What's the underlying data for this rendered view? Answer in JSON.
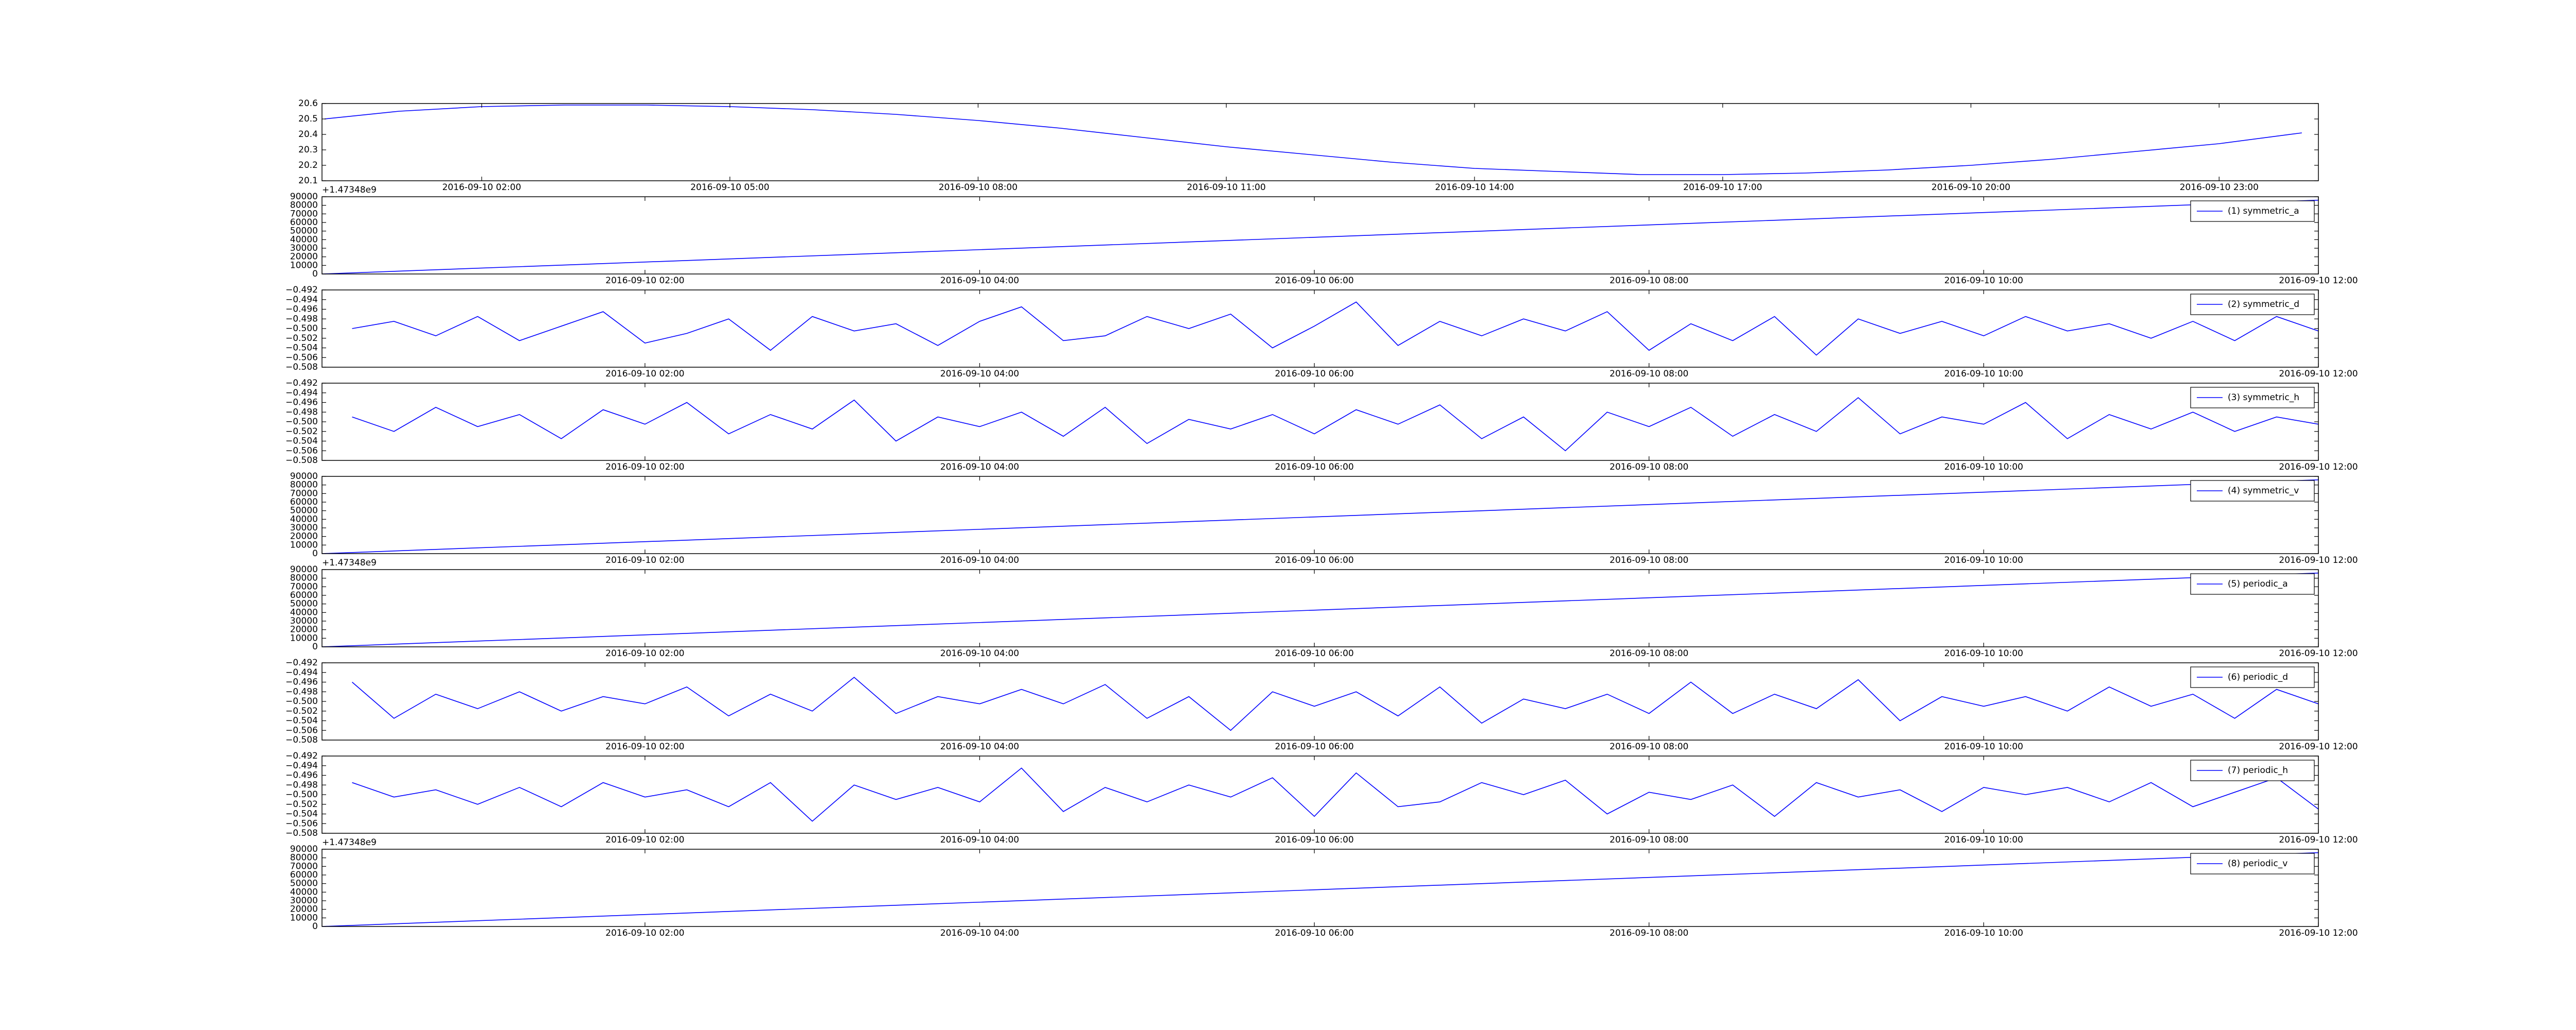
{
  "chart_data": [
    {
      "type": "line",
      "color": "#0000ff",
      "legend": "upper right",
      "x": [
        0.1,
        1,
        2,
        3,
        4,
        5,
        6,
        7,
        8,
        9,
        10,
        11,
        12,
        13,
        14,
        15,
        16,
        17,
        18,
        19,
        20,
        21,
        22,
        23,
        24
      ],
      "values": [
        20.5,
        20.55,
        20.58,
        20.59,
        20.59,
        20.58,
        20.56,
        20.53,
        20.49,
        20.44,
        20.38,
        20.32,
        20.27,
        20.22,
        20.18,
        20.16,
        20.14,
        20.14,
        20.15,
        20.17,
        20.2,
        20.24,
        20.29,
        20.34,
        20.41
      ],
      "xlim": [
        0.07,
        24.2
      ],
      "ylim": [
        20.1,
        20.6
      ],
      "xticks": [
        {
          "value": 2,
          "label": "2016-09-10 02:00"
        },
        {
          "value": 5,
          "label": "2016-09-10 05:00"
        },
        {
          "value": 8,
          "label": "2016-09-10 08:00"
        },
        {
          "value": 11,
          "label": "2016-09-10 11:00"
        },
        {
          "value": 14,
          "label": "2016-09-10 14:00"
        },
        {
          "value": 17,
          "label": "2016-09-10 17:00"
        },
        {
          "value": 20,
          "label": "2016-09-10 20:00"
        },
        {
          "value": 23,
          "label": "2016-09-10 23:00"
        }
      ],
      "yticks": [
        20.1,
        20.2,
        20.3,
        20.4,
        20.5,
        20.6
      ]
    },
    {
      "type": "line",
      "offset_text": "+1.47348e9",
      "legend": "upper right",
      "x": [
        0.07,
        12
      ],
      "series": [
        {
          "name": "(1) symmetric_a",
          "color": "#0000ff",
          "values": [
            0,
            86000
          ]
        }
      ],
      "xlim": [
        0.07,
        12
      ],
      "ylim": [
        0,
        90000
      ],
      "xticks": [
        {
          "value": 2,
          "label": "2016-09-10 02:00"
        },
        {
          "value": 4,
          "label": "2016-09-10 04:00"
        },
        {
          "value": 6,
          "label": "2016-09-10 06:00"
        },
        {
          "value": 8,
          "label": "2016-09-10 08:00"
        },
        {
          "value": 10,
          "label": "2016-09-10 10:00"
        },
        {
          "value": 12,
          "label": "2016-09-10 12:00"
        }
      ],
      "yticks": [
        0,
        10000,
        20000,
        30000,
        40000,
        50000,
        60000,
        70000,
        80000,
        90000
      ]
    },
    {
      "type": "line",
      "legend": "upper right",
      "x": [
        0.25,
        0.5,
        0.75,
        1,
        1.25,
        1.5,
        1.75,
        2,
        2.25,
        2.5,
        2.75,
        3,
        3.25,
        3.5,
        3.75,
        4,
        4.25,
        4.5,
        4.75,
        5,
        5.25,
        5.5,
        5.75,
        6,
        6.25,
        6.5,
        6.75,
        7,
        7.25,
        7.5,
        7.75,
        8,
        8.25,
        8.5,
        8.75,
        9,
        9.25,
        9.5,
        9.75,
        10,
        10.25,
        10.5,
        10.75,
        11,
        11.25,
        11.5,
        11.75,
        12
      ],
      "series": [
        {
          "name": "(2) symmetric_d",
          "color": "#0000ff",
          "values": [
            -0.5,
            -0.4985,
            -0.5015,
            -0.4975,
            -0.5025,
            -0.4995,
            -0.4965,
            -0.503,
            -0.501,
            -0.498,
            -0.5045,
            -0.4975,
            -0.5005,
            -0.499,
            -0.5035,
            -0.4985,
            -0.4955,
            -0.5025,
            -0.5015,
            -0.4975,
            -0.5,
            -0.497,
            -0.504,
            -0.4995,
            -0.4945,
            -0.5035,
            -0.4985,
            -0.5015,
            -0.498,
            -0.5005,
            -0.4965,
            -0.5045,
            -0.499,
            -0.5025,
            -0.4975,
            -0.5055,
            -0.498,
            -0.501,
            -0.4985,
            -0.5015,
            -0.4975,
            -0.5005,
            -0.499,
            -0.502,
            -0.4985,
            -0.5025,
            -0.4975,
            -0.5005
          ]
        }
      ],
      "xlim": [
        0.07,
        12
      ],
      "ylim": [
        -0.508,
        -0.492
      ],
      "xticks": [
        {
          "value": 2,
          "label": "2016-09-10 02:00"
        },
        {
          "value": 4,
          "label": "2016-09-10 04:00"
        },
        {
          "value": 6,
          "label": "2016-09-10 06:00"
        },
        {
          "value": 8,
          "label": "2016-09-10 08:00"
        },
        {
          "value": 10,
          "label": "2016-09-10 10:00"
        },
        {
          "value": 12,
          "label": "2016-09-10 12:00"
        }
      ],
      "yticks": [
        {
          "value": -0.508,
          "label": "−0.508"
        },
        {
          "value": -0.506,
          "label": "−0.506"
        },
        {
          "value": -0.504,
          "label": "−0.504"
        },
        {
          "value": -0.502,
          "label": "−0.502"
        },
        {
          "value": -0.5,
          "label": "−0.500"
        },
        {
          "value": -0.498,
          "label": "−0.498"
        },
        {
          "value": -0.496,
          "label": "−0.496"
        },
        {
          "value": -0.494,
          "label": "−0.494"
        },
        {
          "value": -0.492,
          "label": "−0.492"
        }
      ]
    },
    {
      "type": "line",
      "legend": "upper right",
      "x": [
        0.25,
        0.5,
        0.75,
        1,
        1.25,
        1.5,
        1.75,
        2,
        2.25,
        2.5,
        2.75,
        3,
        3.25,
        3.5,
        3.75,
        4,
        4.25,
        4.5,
        4.75,
        5,
        5.25,
        5.5,
        5.75,
        6,
        6.25,
        6.5,
        6.75,
        7,
        7.25,
        7.5,
        7.75,
        8,
        8.25,
        8.5,
        8.75,
        9,
        9.25,
        9.5,
        9.75,
        10,
        10.25,
        10.5,
        10.75,
        11,
        11.25,
        11.5,
        11.75,
        12
      ],
      "series": [
        {
          "name": "(3) symmetric_h",
          "color": "#0000ff",
          "values": [
            -0.499,
            -0.502,
            -0.497,
            -0.501,
            -0.4985,
            -0.5035,
            -0.4975,
            -0.5005,
            -0.496,
            -0.5025,
            -0.4985,
            -0.5015,
            -0.4955,
            -0.504,
            -0.499,
            -0.501,
            -0.498,
            -0.503,
            -0.497,
            -0.5045,
            -0.4995,
            -0.5015,
            -0.4985,
            -0.5025,
            -0.4975,
            -0.5005,
            -0.4965,
            -0.5035,
            -0.499,
            -0.506,
            -0.498,
            -0.501,
            -0.497,
            -0.503,
            -0.4985,
            -0.502,
            -0.495,
            -0.5025,
            -0.499,
            -0.5005,
            -0.496,
            -0.5035,
            -0.4985,
            -0.5015,
            -0.498,
            -0.502,
            -0.499,
            -0.5005
          ]
        }
      ],
      "xlim": [
        0.07,
        12
      ],
      "ylim": [
        -0.508,
        -0.492
      ],
      "xticks": [
        {
          "value": 2,
          "label": "2016-09-10 02:00"
        },
        {
          "value": 4,
          "label": "2016-09-10 04:00"
        },
        {
          "value": 6,
          "label": "2016-09-10 06:00"
        },
        {
          "value": 8,
          "label": "2016-09-10 08:00"
        },
        {
          "value": 10,
          "label": "2016-09-10 10:00"
        },
        {
          "value": 12,
          "label": "2016-09-10 12:00"
        }
      ],
      "yticks": [
        {
          "value": -0.508,
          "label": "−0.508"
        },
        {
          "value": -0.506,
          "label": "−0.506"
        },
        {
          "value": -0.504,
          "label": "−0.504"
        },
        {
          "value": -0.502,
          "label": "−0.502"
        },
        {
          "value": -0.5,
          "label": "−0.500"
        },
        {
          "value": -0.498,
          "label": "−0.498"
        },
        {
          "value": -0.496,
          "label": "−0.496"
        },
        {
          "value": -0.494,
          "label": "−0.494"
        },
        {
          "value": -0.492,
          "label": "−0.492"
        }
      ]
    },
    {
      "type": "line",
      "legend": "upper right",
      "x": [
        0.07,
        12
      ],
      "series": [
        {
          "name": "(4) symmetric_v",
          "color": "#0000ff",
          "values": [
            0,
            86000
          ]
        }
      ],
      "xlim": [
        0.07,
        12
      ],
      "ylim": [
        0,
        90000
      ],
      "xticks": [
        {
          "value": 2,
          "label": "2016-09-10 02:00"
        },
        {
          "value": 4,
          "label": "2016-09-10 04:00"
        },
        {
          "value": 6,
          "label": "2016-09-10 06:00"
        },
        {
          "value": 8,
          "label": "2016-09-10 08:00"
        },
        {
          "value": 10,
          "label": "2016-09-10 10:00"
        },
        {
          "value": 12,
          "label": "2016-09-10 12:00"
        }
      ],
      "yticks": [
        0,
        10000,
        20000,
        30000,
        40000,
        50000,
        60000,
        70000,
        80000,
        90000
      ]
    },
    {
      "type": "line",
      "offset_text": "+1.47348e9",
      "legend": "upper right",
      "x": [
        0.07,
        12
      ],
      "series": [
        {
          "name": "(5) periodic_a",
          "color": "#0000ff",
          "values": [
            0,
            86000
          ]
        }
      ],
      "xlim": [
        0.07,
        12
      ],
      "ylim": [
        0,
        90000
      ],
      "xticks": [
        {
          "value": 2,
          "label": "2016-09-10 02:00"
        },
        {
          "value": 4,
          "label": "2016-09-10 04:00"
        },
        {
          "value": 6,
          "label": "2016-09-10 06:00"
        },
        {
          "value": 8,
          "label": "2016-09-10 08:00"
        },
        {
          "value": 10,
          "label": "2016-09-10 10:00"
        },
        {
          "value": 12,
          "label": "2016-09-10 12:00"
        }
      ],
      "yticks": [
        0,
        10000,
        20000,
        30000,
        40000,
        50000,
        60000,
        70000,
        80000,
        90000
      ]
    },
    {
      "type": "line",
      "legend": "upper right",
      "x": [
        0.25,
        0.5,
        0.75,
        1,
        1.25,
        1.5,
        1.75,
        2,
        2.25,
        2.5,
        2.75,
        3,
        3.25,
        3.5,
        3.75,
        4,
        4.25,
        4.5,
        4.75,
        5,
        5.25,
        5.5,
        5.75,
        6,
        6.25,
        6.5,
        6.75,
        7,
        7.25,
        7.5,
        7.75,
        8,
        8.25,
        8.5,
        8.75,
        9,
        9.25,
        9.5,
        9.75,
        10,
        10.25,
        10.5,
        10.75,
        11,
        11.25,
        11.5,
        11.75,
        12
      ],
      "series": [
        {
          "name": "(6) periodic_d",
          "color": "#0000ff",
          "values": [
            -0.496,
            -0.5035,
            -0.4985,
            -0.5015,
            -0.498,
            -0.502,
            -0.499,
            -0.5005,
            -0.497,
            -0.503,
            -0.4985,
            -0.502,
            -0.495,
            -0.5025,
            -0.499,
            -0.5005,
            -0.4975,
            -0.5005,
            -0.4965,
            -0.5035,
            -0.499,
            -0.506,
            -0.498,
            -0.501,
            -0.498,
            -0.503,
            -0.497,
            -0.5045,
            -0.4995,
            -0.5015,
            -0.4985,
            -0.5025,
            -0.496,
            -0.5025,
            -0.4985,
            -0.5015,
            -0.4955,
            -0.504,
            -0.499,
            -0.501,
            -0.499,
            -0.502,
            -0.497,
            -0.501,
            -0.4985,
            -0.5035,
            -0.4975,
            -0.5005
          ]
        }
      ],
      "xlim": [
        0.07,
        12
      ],
      "ylim": [
        -0.508,
        -0.492
      ],
      "xticks": [
        {
          "value": 2,
          "label": "2016-09-10 02:00"
        },
        {
          "value": 4,
          "label": "2016-09-10 04:00"
        },
        {
          "value": 6,
          "label": "2016-09-10 06:00"
        },
        {
          "value": 8,
          "label": "2016-09-10 08:00"
        },
        {
          "value": 10,
          "label": "2016-09-10 10:00"
        },
        {
          "value": 12,
          "label": "2016-09-10 12:00"
        }
      ],
      "yticks": [
        {
          "value": -0.508,
          "label": "−0.508"
        },
        {
          "value": -0.506,
          "label": "−0.506"
        },
        {
          "value": -0.504,
          "label": "−0.504"
        },
        {
          "value": -0.502,
          "label": "−0.502"
        },
        {
          "value": -0.5,
          "label": "−0.500"
        },
        {
          "value": -0.498,
          "label": "−0.498"
        },
        {
          "value": -0.496,
          "label": "−0.496"
        },
        {
          "value": -0.494,
          "label": "−0.494"
        },
        {
          "value": -0.492,
          "label": "−0.492"
        }
      ]
    },
    {
      "type": "line",
      "legend": "upper right",
      "x": [
        0.25,
        0.5,
        0.75,
        1,
        1.25,
        1.5,
        1.75,
        2,
        2.25,
        2.5,
        2.75,
        3,
        3.25,
        3.5,
        3.75,
        4,
        4.25,
        4.5,
        4.75,
        5,
        5.25,
        5.5,
        5.75,
        6,
        6.25,
        6.5,
        6.75,
        7,
        7.25,
        7.5,
        7.75,
        8,
        8.25,
        8.5,
        8.75,
        9,
        9.25,
        9.5,
        9.75,
        10,
        10.25,
        10.5,
        10.75,
        11,
        11.25,
        11.5,
        11.75,
        12
      ],
      "series": [
        {
          "name": "(7) periodic_h",
          "color": "#0000ff",
          "values": [
            -0.4975,
            -0.5005,
            -0.499,
            -0.502,
            -0.4985,
            -0.5025,
            -0.4975,
            -0.5005,
            -0.499,
            -0.5025,
            -0.4975,
            -0.5055,
            -0.498,
            -0.501,
            -0.4985,
            -0.5015,
            -0.4945,
            -0.5035,
            -0.4985,
            -0.5015,
            -0.498,
            -0.5005,
            -0.4965,
            -0.5045,
            -0.4955,
            -0.5025,
            -0.5015,
            -0.4975,
            -0.5,
            -0.497,
            -0.504,
            -0.4995,
            -0.501,
            -0.498,
            -0.5045,
            -0.4975,
            -0.5005,
            -0.499,
            -0.5035,
            -0.4985,
            -0.5,
            -0.4985,
            -0.5015,
            -0.4975,
            -0.5025,
            -0.4995,
            -0.4965,
            -0.503
          ]
        }
      ],
      "xlim": [
        0.07,
        12
      ],
      "ylim": [
        -0.508,
        -0.492
      ],
      "xticks": [
        {
          "value": 2,
          "label": "2016-09-10 02:00"
        },
        {
          "value": 4,
          "label": "2016-09-10 04:00"
        },
        {
          "value": 6,
          "label": "2016-09-10 06:00"
        },
        {
          "value": 8,
          "label": "2016-09-10 08:00"
        },
        {
          "value": 10,
          "label": "2016-09-10 10:00"
        },
        {
          "value": 12,
          "label": "2016-09-10 12:00"
        }
      ],
      "yticks": [
        {
          "value": -0.508,
          "label": "−0.508"
        },
        {
          "value": -0.506,
          "label": "−0.506"
        },
        {
          "value": -0.504,
          "label": "−0.504"
        },
        {
          "value": -0.502,
          "label": "−0.502"
        },
        {
          "value": -0.5,
          "label": "−0.500"
        },
        {
          "value": -0.498,
          "label": "−0.498"
        },
        {
          "value": -0.496,
          "label": "−0.496"
        },
        {
          "value": -0.494,
          "label": "−0.494"
        },
        {
          "value": -0.492,
          "label": "−0.492"
        }
      ]
    },
    {
      "type": "line",
      "offset_text": "+1.47348e9",
      "legend": "upper right",
      "x": [
        0.07,
        12
      ],
      "series": [
        {
          "name": "(8) periodic_v",
          "color": "#0000ff",
          "values": [
            0,
            86000
          ]
        }
      ],
      "xlim": [
        0.07,
        12
      ],
      "ylim": [
        0,
        90000
      ],
      "xticks": [
        {
          "value": 2,
          "label": "2016-09-10 02:00"
        },
        {
          "value": 4,
          "label": "2016-09-10 04:00"
        },
        {
          "value": 6,
          "label": "2016-09-10 06:00"
        },
        {
          "value": 8,
          "label": "2016-09-10 08:00"
        },
        {
          "value": 10,
          "label": "2016-09-10 10:00"
        },
        {
          "value": 12,
          "label": "2016-09-10 12:00"
        }
      ],
      "yticks": [
        0,
        10000,
        20000,
        30000,
        40000,
        50000,
        60000,
        70000,
        80000,
        90000
      ]
    }
  ]
}
